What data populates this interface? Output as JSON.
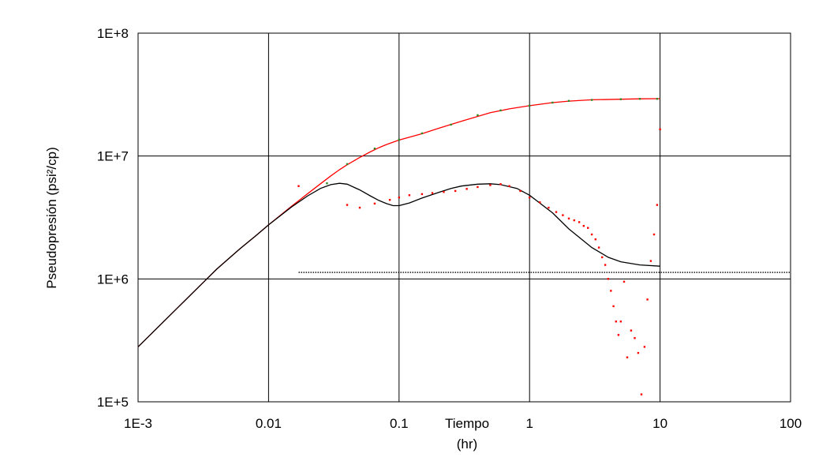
{
  "chart_data": {
    "type": "scatter",
    "x_scale": "log",
    "y_scale": "log",
    "xlim": [
      0.001,
      100
    ],
    "ylim": [
      100000,
      100000000
    ],
    "grid": true,
    "xlabel": "Tiempo",
    "xlabel_unit": "(hr)",
    "ylabel": "Pseudopresión (psi²/cp)",
    "x_ticks": [
      {
        "value": 0.001,
        "label": "1E-3"
      },
      {
        "value": 0.01,
        "label": "0.01"
      },
      {
        "value": 0.1,
        "label": "0.1"
      },
      {
        "value": 1,
        "label": "1"
      },
      {
        "value": 10,
        "label": "10"
      },
      {
        "value": 100,
        "label": "100"
      }
    ],
    "y_ticks": [
      {
        "value": 100000,
        "label": "1E+5"
      },
      {
        "value": 1000000,
        "label": "1E+6"
      },
      {
        "value": 10000000,
        "label": "1E+7"
      },
      {
        "value": 100000000,
        "label": "1E+8"
      }
    ],
    "colors": {
      "red": "#ff0000",
      "black": "#000000",
      "green": "#2e8b22"
    },
    "series": [
      {
        "kind": "line",
        "color": "#ff0000",
        "x": [
          0.001,
          0.002,
          0.004,
          0.006,
          0.008,
          0.01,
          0.015,
          0.02,
          0.025,
          0.03,
          0.035,
          0.04,
          0.05,
          0.06,
          0.07,
          0.08,
          0.1,
          0.15,
          0.2,
          0.3,
          0.5,
          0.7,
          1,
          1.5,
          2,
          3,
          5,
          7,
          10
        ],
        "y": [
          280000,
          580000,
          1200000,
          1750000,
          2250000,
          2750000,
          3900000,
          4950000,
          5950000,
          6900000,
          7750000,
          8500000,
          9750000,
          10800000,
          11700000,
          12400000,
          13500000,
          15200000,
          16800000,
          19200000,
          22500000,
          24200000,
          25700000,
          27200000,
          28000000,
          28700000,
          29000000,
          29200000,
          29300000
        ]
      },
      {
        "kind": "line",
        "color": "#000000",
        "x": [
          0.001,
          0.002,
          0.004,
          0.006,
          0.008,
          0.01,
          0.015,
          0.02,
          0.025,
          0.03,
          0.035,
          0.04,
          0.05,
          0.06,
          0.07,
          0.08,
          0.09,
          0.1,
          0.12,
          0.15,
          0.2,
          0.25,
          0.3,
          0.4,
          0.5,
          0.6,
          0.8,
          1,
          1.5,
          2,
          3,
          4,
          5,
          7,
          10
        ],
        "y": [
          280000,
          580000,
          1200000,
          1750000,
          2250000,
          2750000,
          3850000,
          4750000,
          5450000,
          5850000,
          6000000,
          5900000,
          5300000,
          4750000,
          4350000,
          4100000,
          3950000,
          3950000,
          4150000,
          4550000,
          5050000,
          5450000,
          5700000,
          5900000,
          5950000,
          5850000,
          5450000,
          4800000,
          3450000,
          2550000,
          1800000,
          1500000,
          1380000,
          1300000,
          1270000
        ]
      },
      {
        "kind": "line",
        "style": "dotted",
        "color": "#000000",
        "x": [
          0.017,
          100
        ],
        "y": [
          1130000,
          1130000
        ]
      },
      {
        "kind": "points",
        "color": "#2e8b22",
        "x": [
          0.028,
          0.04,
          0.065,
          0.1,
          0.15,
          0.25,
          0.4,
          0.6,
          1,
          1.5,
          2,
          3,
          5,
          7,
          9.5
        ],
        "y": [
          6000000,
          8600000,
          11500000,
          13600000,
          15300000,
          18000000,
          21500000,
          23500000,
          25700000,
          27200000,
          28100000,
          28600000,
          29000000,
          29200000,
          29200000
        ]
      },
      {
        "kind": "points",
        "color": "#ff0000",
        "x": [
          0.017,
          0.04,
          0.05,
          0.065,
          0.085,
          0.1,
          0.12,
          0.15,
          0.18,
          0.22,
          0.27,
          0.33,
          0.4,
          0.5,
          0.6,
          0.7,
          0.85,
          1,
          1.2,
          1.4,
          1.6,
          1.8,
          2,
          2.2,
          2.4,
          2.6,
          2.8,
          3,
          3.2,
          3.4,
          3.6,
          3.8,
          4,
          4.2,
          4.4,
          4.6,
          4.8,
          5,
          5.3,
          5.6,
          6,
          6.4,
          6.8,
          7.2,
          7.6,
          8,
          8.5,
          9,
          9.5,
          10
        ],
        "y": [
          5700000,
          4000000,
          3800000,
          4100000,
          4400000,
          4600000,
          4800000,
          4900000,
          5000000,
          5100000,
          5200000,
          5400000,
          5600000,
          5800000,
          5900000,
          5700000,
          5200000,
          4600000,
          4200000,
          3800000,
          3500000,
          3300000,
          3100000,
          3000000,
          2900000,
          2700000,
          2600000,
          2300000,
          2100000,
          1800000,
          1500000,
          1300000,
          1000000,
          800000,
          600000,
          450000,
          350000,
          450000,
          950000,
          230000,
          380000,
          330000,
          250000,
          115000,
          280000,
          680000,
          1400000,
          2300000,
          4000000,
          16500000
        ]
      }
    ]
  }
}
